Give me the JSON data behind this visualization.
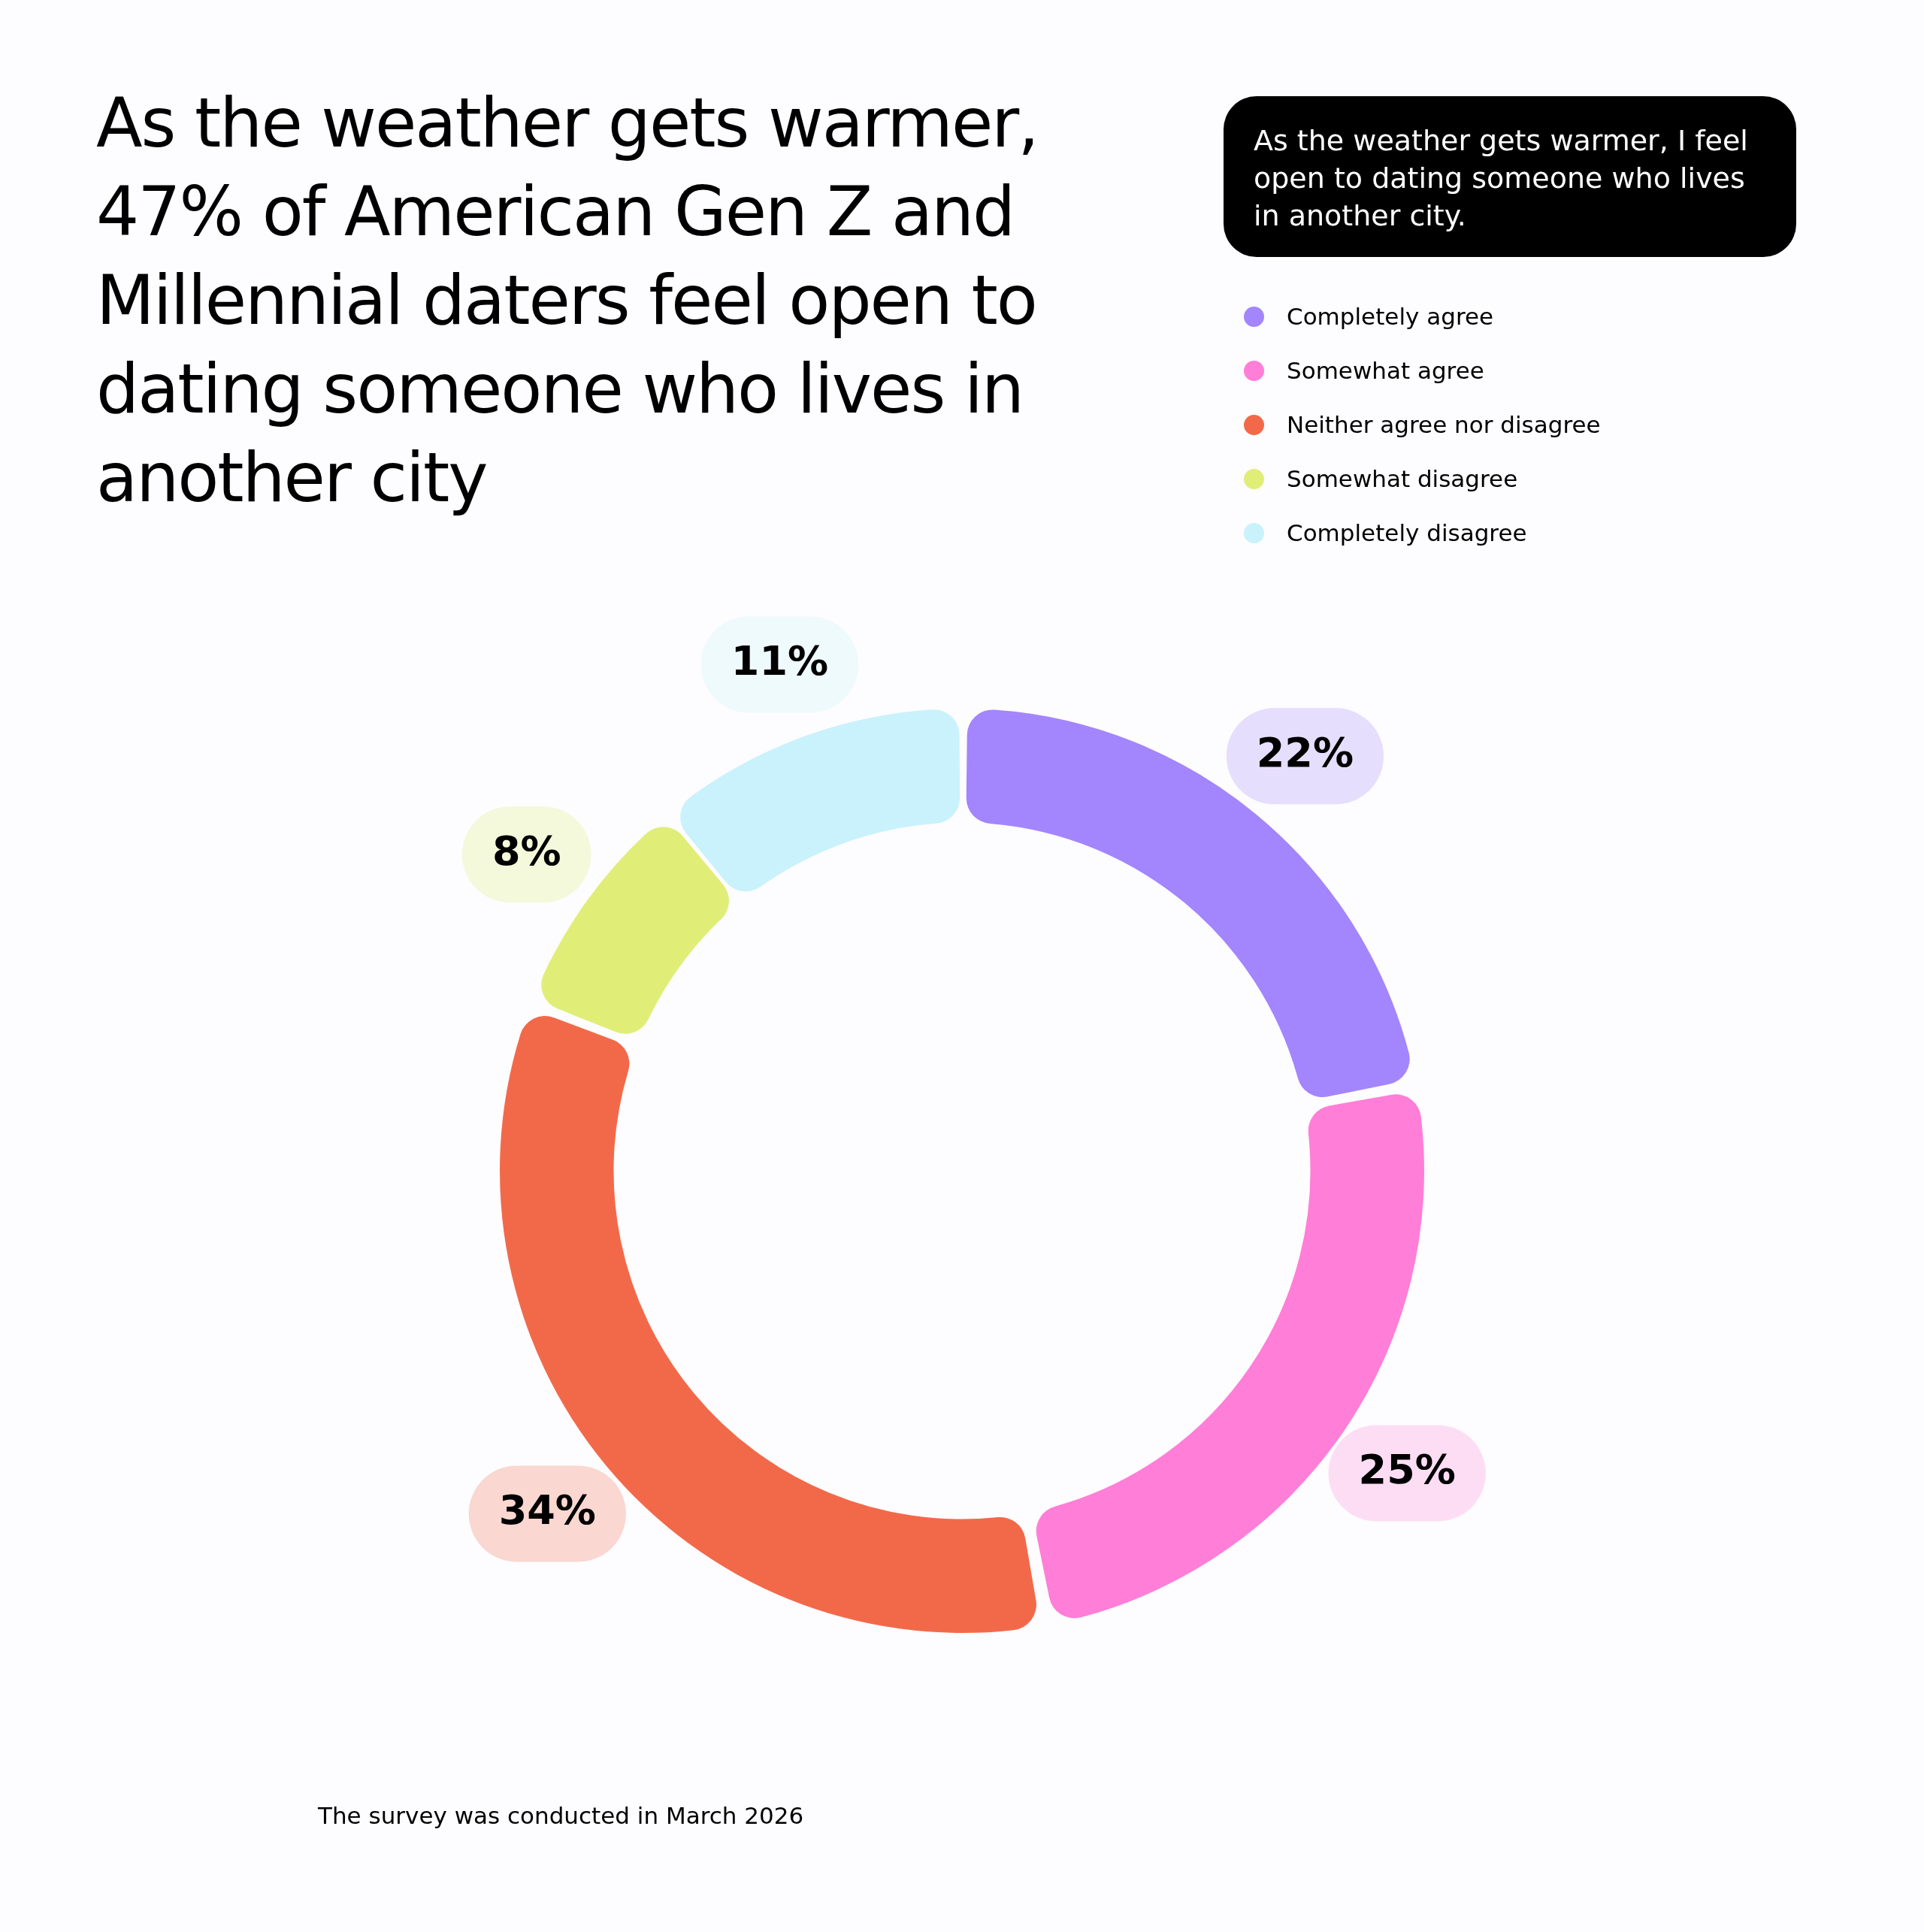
{
  "chart_data": {
    "type": "donut",
    "title": "As the weather gets warmer, 47% of American Gen Z and Millennial daters feel open to dating someone who lives in another city",
    "subtitle": "As the weather gets warmer, I feel open to dating someone who lives in another city.",
    "categories": [
      "Completely agree",
      "Somewhat agree",
      "Neither agree nor disagree",
      "Somewhat disagree",
      "Completely disagree"
    ],
    "values": [
      22,
      25,
      34,
      8,
      11
    ],
    "value_labels": [
      "22%",
      "25%",
      "34%",
      "8%",
      "11%"
    ],
    "colors": [
      "#a385fd",
      "#ff7ed8",
      "#f2694a",
      "#e0ee78",
      "#c9f2fc"
    ],
    "legend": "top right",
    "annotations": [
      "The survey was conducted in March 2026"
    ]
  }
}
